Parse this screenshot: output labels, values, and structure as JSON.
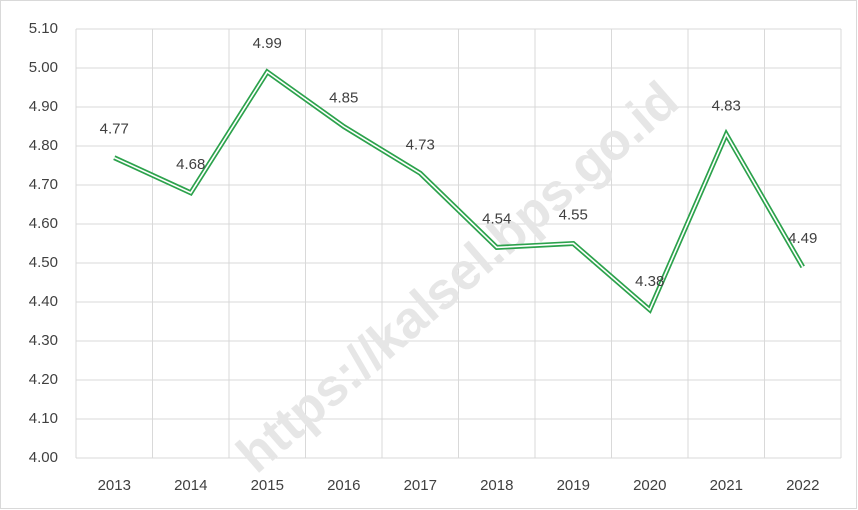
{
  "chart_data": {
    "type": "line",
    "categories": [
      "2013",
      "2014",
      "2015",
      "2016",
      "2017",
      "2018",
      "2019",
      "2020",
      "2021",
      "2022"
    ],
    "values": [
      4.77,
      4.68,
      4.99,
      4.85,
      4.73,
      4.54,
      4.55,
      4.38,
      4.83,
      4.49
    ],
    "color": "#2ca24c",
    "ylim": [
      4.0,
      5.1
    ],
    "yticks": [
      {
        "value": 4.0,
        "label": "4.00"
      },
      {
        "value": 4.1,
        "label": "4.10"
      },
      {
        "value": 4.2,
        "label": "4.20"
      },
      {
        "value": 4.3,
        "label": "4.30"
      },
      {
        "value": 4.4,
        "label": "4.40"
      },
      {
        "value": 4.5,
        "label": "4.50"
      },
      {
        "value": 4.6,
        "label": "4.60"
      },
      {
        "value": 4.7,
        "label": "4.70"
      },
      {
        "value": 4.8,
        "label": "4.80"
      },
      {
        "value": 4.9,
        "label": "4.90"
      },
      {
        "value": 5.0,
        "label": "5.00"
      },
      {
        "value": 5.1,
        "label": "5.10"
      }
    ],
    "grid": true,
    "watermark": "https://kalsel.bps.go.id"
  }
}
